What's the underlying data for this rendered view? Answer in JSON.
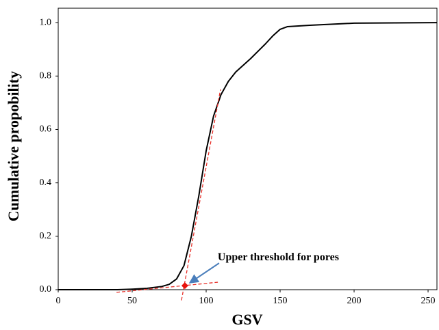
{
  "chart_data": {
    "type": "line",
    "x_label": "GSV",
    "y_label": "Cumulative propobility",
    "x": [
      0,
      40,
      50,
      60,
      70,
      75,
      80,
      85,
      90,
      95,
      100,
      105,
      110,
      115,
      120,
      130,
      140,
      145,
      150,
      155,
      170,
      200,
      256
    ],
    "values": [
      0,
      0,
      0.002,
      0.005,
      0.012,
      0.02,
      0.04,
      0.09,
      0.2,
      0.35,
      0.52,
      0.65,
      0.73,
      0.78,
      0.815,
      0.865,
      0.92,
      0.95,
      0.975,
      0.985,
      0.99,
      0.998,
      1.0
    ],
    "color": "#000000",
    "xlim": [
      0,
      256
    ],
    "ylim": [
      0,
      1.054
    ],
    "xticks": [
      0,
      50,
      100,
      150,
      200,
      250
    ],
    "yticks": [
      {
        "value": 0,
        "label": "0.0"
      },
      {
        "value": 0.2,
        "label": "0.2"
      },
      {
        "value": 0.4,
        "label": "0.4"
      },
      {
        "value": 0.6,
        "label": "0.6"
      },
      {
        "value": 0.8,
        "label": "0.8"
      },
      {
        "value": 1,
        "label": "1.0"
      }
    ],
    "grid": false,
    "tangents": [
      {
        "x": [
          83.3,
          109.7
        ],
        "y": [
          -0.04,
          0.75
        ],
        "color": "#e8312a"
      },
      {
        "x": [
          39.4,
          107.9
        ],
        "y": [
          -0.01,
          0.028
        ],
        "color": "#e8312a"
      }
    ],
    "marker": {
      "x": 85.6,
      "y": 0.015,
      "color": "#e8120c"
    },
    "annotation": {
      "text": "Upper threshold for pores",
      "arrow_color": "#4a7ebb"
    }
  }
}
